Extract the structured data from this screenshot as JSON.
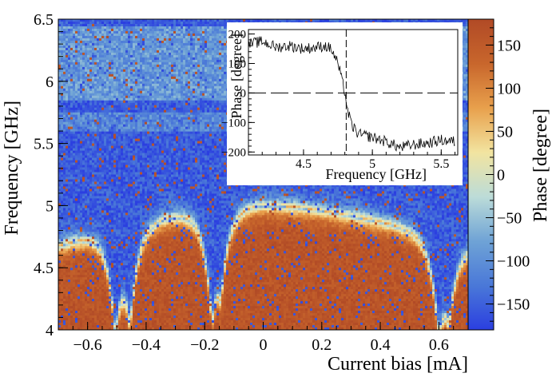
{
  "chart_data": [
    {
      "type": "heatmap",
      "title": "",
      "xlabel": "Current bias [mA]",
      "ylabel": "Frequency [GHz]",
      "xlim": [
        -0.7,
        0.7
      ],
      "ylim": [
        4.0,
        6.5
      ],
      "xticks": [
        -0.6,
        -0.4,
        -0.2,
        0,
        0.2,
        0.4,
        0.6
      ],
      "xtick_labels": [
        "−0.6",
        "−0.4",
        "−0.2",
        "0",
        "0.2",
        "0.4",
        "0.6"
      ],
      "yticks": [
        4,
        4.5,
        5,
        5.5,
        6,
        6.5
      ],
      "ytick_labels": [
        "4",
        "4.5",
        "5",
        "5.5",
        "6",
        "6.5"
      ],
      "colorbar": {
        "label": "Phase [degree]",
        "range": [
          -180,
          180
        ],
        "ticks": [
          -150,
          -100,
          -50,
          0,
          50,
          100,
          150
        ],
        "tick_labels": [
          "−150",
          "−100",
          "−50",
          "0",
          "50",
          "100",
          "150"
        ],
        "colors": [
          "#2b3fe0",
          "#4a78d8",
          "#6fa3d6",
          "#bcdcd8",
          "#f2e4a0",
          "#e8a04c",
          "#c8662c",
          "#b14a26"
        ]
      },
      "resonance": {
        "max_frequency_ghz": 5.0,
        "dips": [
          {
            "current_ma": -0.505,
            "min_frequency_ghz": 4.25
          },
          {
            "current_ma": -0.455,
            "min_frequency_ghz": 4.3
          },
          {
            "current_ma": -0.175,
            "min_frequency_ghz": 4.25
          },
          {
            "current_ma": -0.145,
            "min_frequency_ghz": 4.5
          },
          {
            "current_ma": 0.6,
            "min_frequency_ghz": 4.3
          },
          {
            "current_ma": 0.635,
            "min_frequency_ghz": 4.5
          }
        ]
      }
    },
    {
      "type": "line",
      "title": "",
      "xlabel": "Frequency [GHz]",
      "ylabel": "Phase [degree]",
      "xlim": [
        4.1,
        5.62
      ],
      "ylim": [
        -210,
        215
      ],
      "xticks": [
        4.5,
        5,
        5.5
      ],
      "xtick_labels": [
        "4.5",
        "5",
        "5.5"
      ],
      "yticks": [
        -200,
        -100,
        0,
        100,
        200
      ],
      "ytick_labels": [
        "−200",
        "−100",
        "0",
        "100",
        "200"
      ],
      "reference_lines": {
        "vertical_x": 4.81,
        "horizontal_y": 0
      },
      "series": [
        {
          "x": [
            4.1,
            4.2,
            4.3,
            4.4,
            4.5,
            4.6,
            4.65,
            4.7,
            4.75,
            4.78,
            4.8,
            4.82,
            4.85,
            4.9,
            5.0,
            5.1,
            5.2,
            5.3,
            5.4,
            5.5,
            5.6
          ],
          "y": [
            165,
            175,
            155,
            160,
            150,
            155,
            160,
            150,
            100,
            40,
            5,
            -60,
            -110,
            -140,
            -150,
            -165,
            -185,
            -175,
            -170,
            -160,
            -165
          ]
        }
      ]
    }
  ]
}
